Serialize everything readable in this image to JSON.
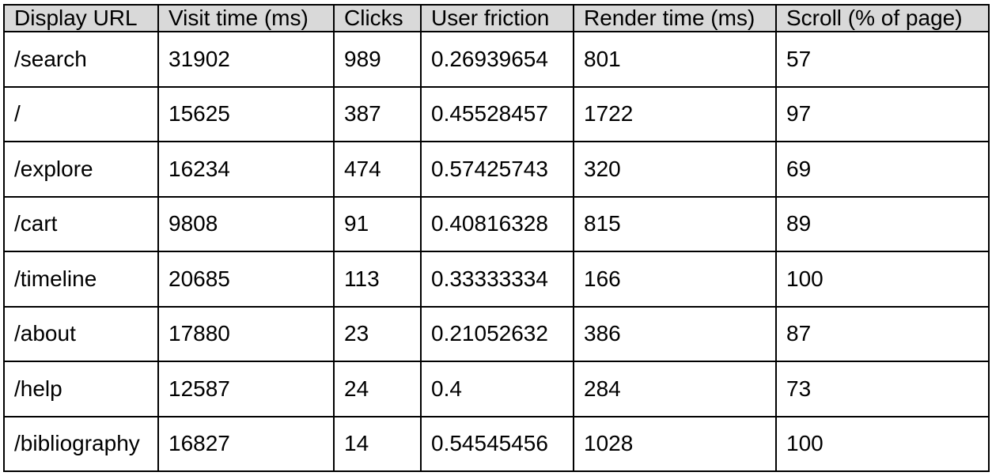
{
  "chart_data": {
    "type": "table",
    "columns": [
      "Display URL",
      "Visit time (ms)",
      "Clicks",
      "User friction",
      "Render time (ms)",
      "Scroll (% of page)"
    ],
    "rows": [
      [
        "/search",
        "31902",
        "989",
        "0.26939654",
        "801",
        "57"
      ],
      [
        "/",
        "15625",
        "387",
        "0.45528457",
        "1722",
        "97"
      ],
      [
        "/explore",
        "16234",
        "474",
        "0.57425743",
        "320",
        "69"
      ],
      [
        "/cart",
        "9808",
        "91",
        "0.40816328",
        "815",
        "89"
      ],
      [
        "/timeline",
        "20685",
        "113",
        "0.33333334",
        "166",
        "100"
      ],
      [
        "/about",
        "17880",
        "23",
        "0.21052632",
        "386",
        "87"
      ],
      [
        "/help",
        "12587",
        "24",
        "0.4",
        "284",
        "73"
      ],
      [
        "/bibliography",
        "16827",
        "14",
        "0.54545456",
        "1028",
        "100"
      ]
    ],
    "colors": {
      "header_background": "#d9d9d9",
      "border": "#000000",
      "text": "#000000"
    }
  }
}
